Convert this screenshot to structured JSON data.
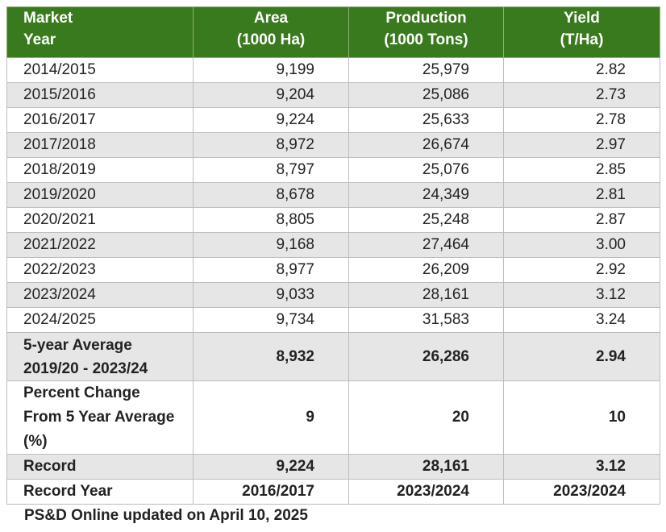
{
  "header": {
    "col0": [
      "Market",
      "Year"
    ],
    "col1": [
      "Area",
      "(1000 Ha)"
    ],
    "col2": [
      "Production",
      "(1000 Tons)"
    ],
    "col3": [
      "Yield",
      "(T/Ha)"
    ]
  },
  "rows": [
    {
      "year": "2014/2015",
      "area": "9,199",
      "production": "25,979",
      "yield": "2.82"
    },
    {
      "year": "2015/2016",
      "area": "9,204",
      "production": "25,086",
      "yield": "2.73"
    },
    {
      "year": "2016/2017",
      "area": "9,224",
      "production": "25,633",
      "yield": "2.78"
    },
    {
      "year": "2017/2018",
      "area": "8,972",
      "production": "26,674",
      "yield": "2.97"
    },
    {
      "year": "2018/2019",
      "area": "8,797",
      "production": "25,076",
      "yield": "2.85"
    },
    {
      "year": "2019/2020",
      "area": "8,678",
      "production": "24,349",
      "yield": "2.81"
    },
    {
      "year": "2020/2021",
      "area": "8,805",
      "production": "25,248",
      "yield": "2.87"
    },
    {
      "year": "2021/2022",
      "area": "9,168",
      "production": "27,464",
      "yield": "3.00"
    },
    {
      "year": "2022/2023",
      "area": "8,977",
      "production": "26,209",
      "yield": "2.92"
    },
    {
      "year": "2023/2024",
      "area": "9,033",
      "production": "28,161",
      "yield": "3.12"
    },
    {
      "year": "2024/2025",
      "area": "9,734",
      "production": "31,583",
      "yield": "3.24"
    }
  ],
  "five_year_average": {
    "label": [
      "5-year Average",
      "2019/20 - 2023/24"
    ],
    "area": "8,932",
    "production": "26,286",
    "yield": "2.94"
  },
  "percent_change": {
    "label": [
      "Percent Change",
      "From 5 Year Average",
      "(%)"
    ],
    "area": "9",
    "production": "20",
    "yield": "10"
  },
  "record": {
    "label": "Record",
    "area": "9,224",
    "production": "28,161",
    "yield": "3.12"
  },
  "record_year": {
    "label": "Record Year",
    "area": "2016/2017",
    "production": "2023/2024",
    "yield": "2023/2024"
  },
  "footnote": "PS&D Online updated on April 10, 2025"
}
